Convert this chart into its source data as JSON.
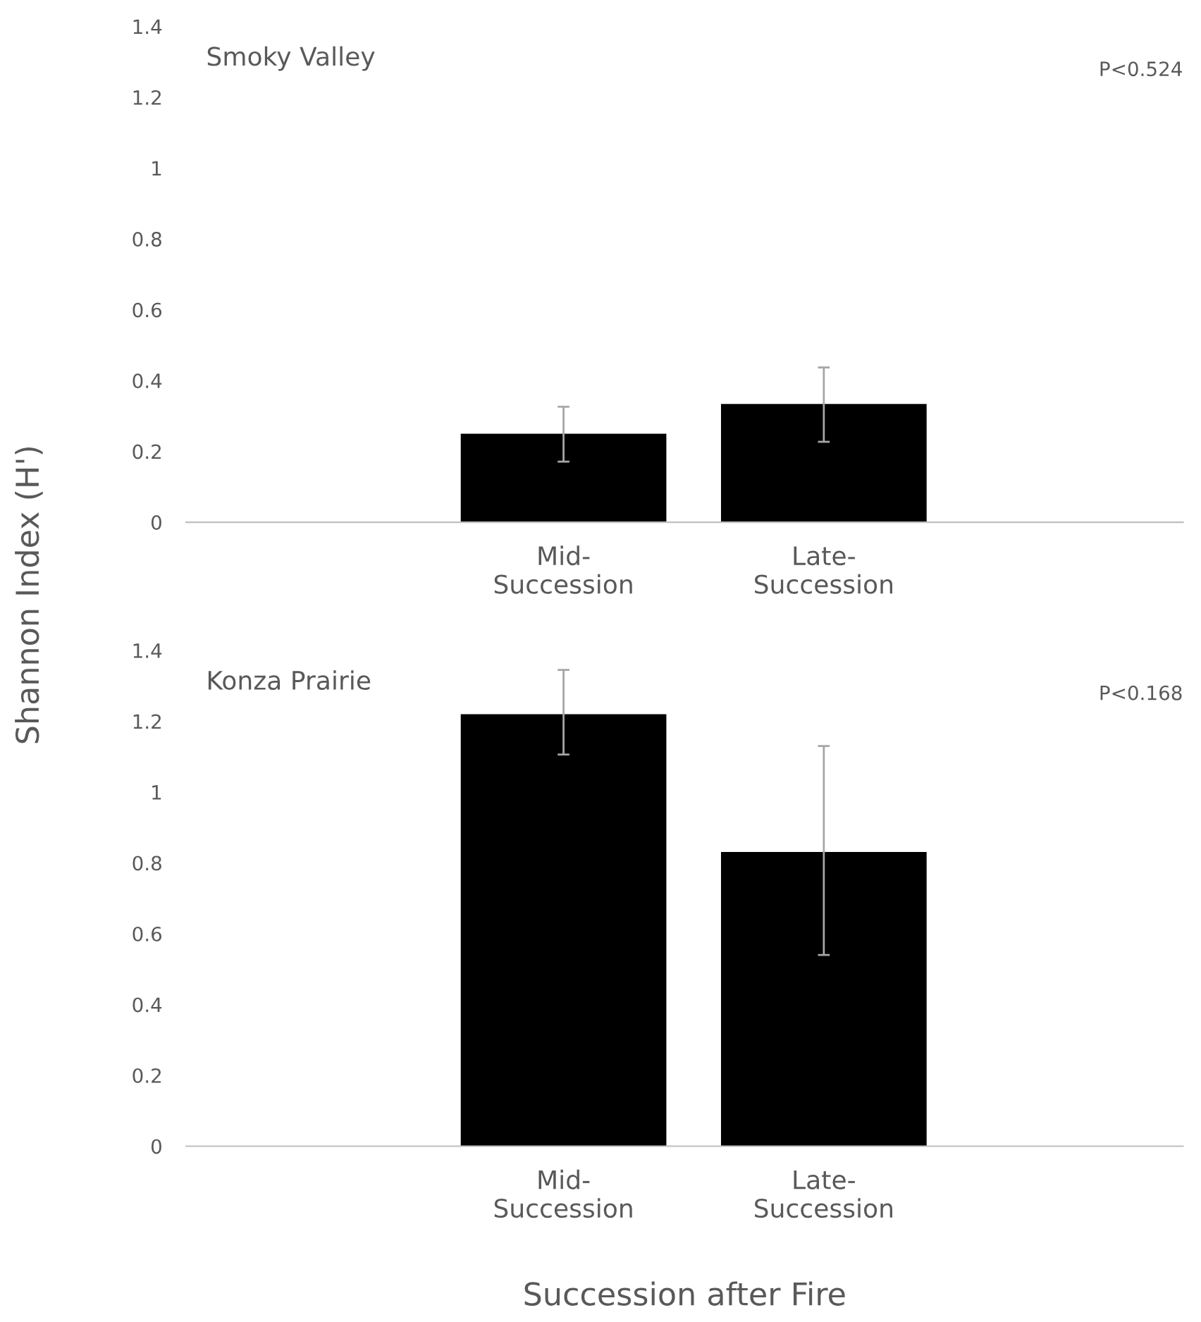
{
  "chart_data": [
    {
      "type": "bar",
      "categories": [
        null,
        "Mid-\nSuccession",
        "Late-\nSuccession",
        null
      ],
      "values": [
        null,
        0.25,
        0.334,
        null
      ],
      "errors": [
        null,
        [
          0.171,
          0.326
        ],
        [
          0.227,
          0.437
        ],
        null
      ],
      "color": "#000000",
      "ylim": [
        0,
        1.4
      ],
      "yticks": [
        0,
        0.2,
        0.4,
        0.6,
        0.8,
        1,
        1.2,
        1.4
      ],
      "ylabel": "Shannon Index (H')",
      "annotations": [
        "Smoky Valley",
        "P<0.524"
      ],
      "grid": false,
      "legend": false
    },
    {
      "type": "bar",
      "categories": [
        null,
        "Mid-\nSuccession",
        "Late-\nSuccession",
        null
      ],
      "values": [
        null,
        1.22,
        0.831,
        null
      ],
      "errors": [
        null,
        [
          1.106,
          1.345
        ],
        [
          0.54,
          1.13
        ],
        null
      ],
      "color": "#000000",
      "ylim": [
        0,
        1.4
      ],
      "yticks": [
        0,
        0.2,
        0.4,
        0.6,
        0.8,
        1,
        1.2,
        1.4
      ],
      "xlabel": "Succession after Fire",
      "annotations": [
        "Konza Prairie",
        "P<0.168"
      ],
      "grid": false,
      "legend": false
    }
  ]
}
